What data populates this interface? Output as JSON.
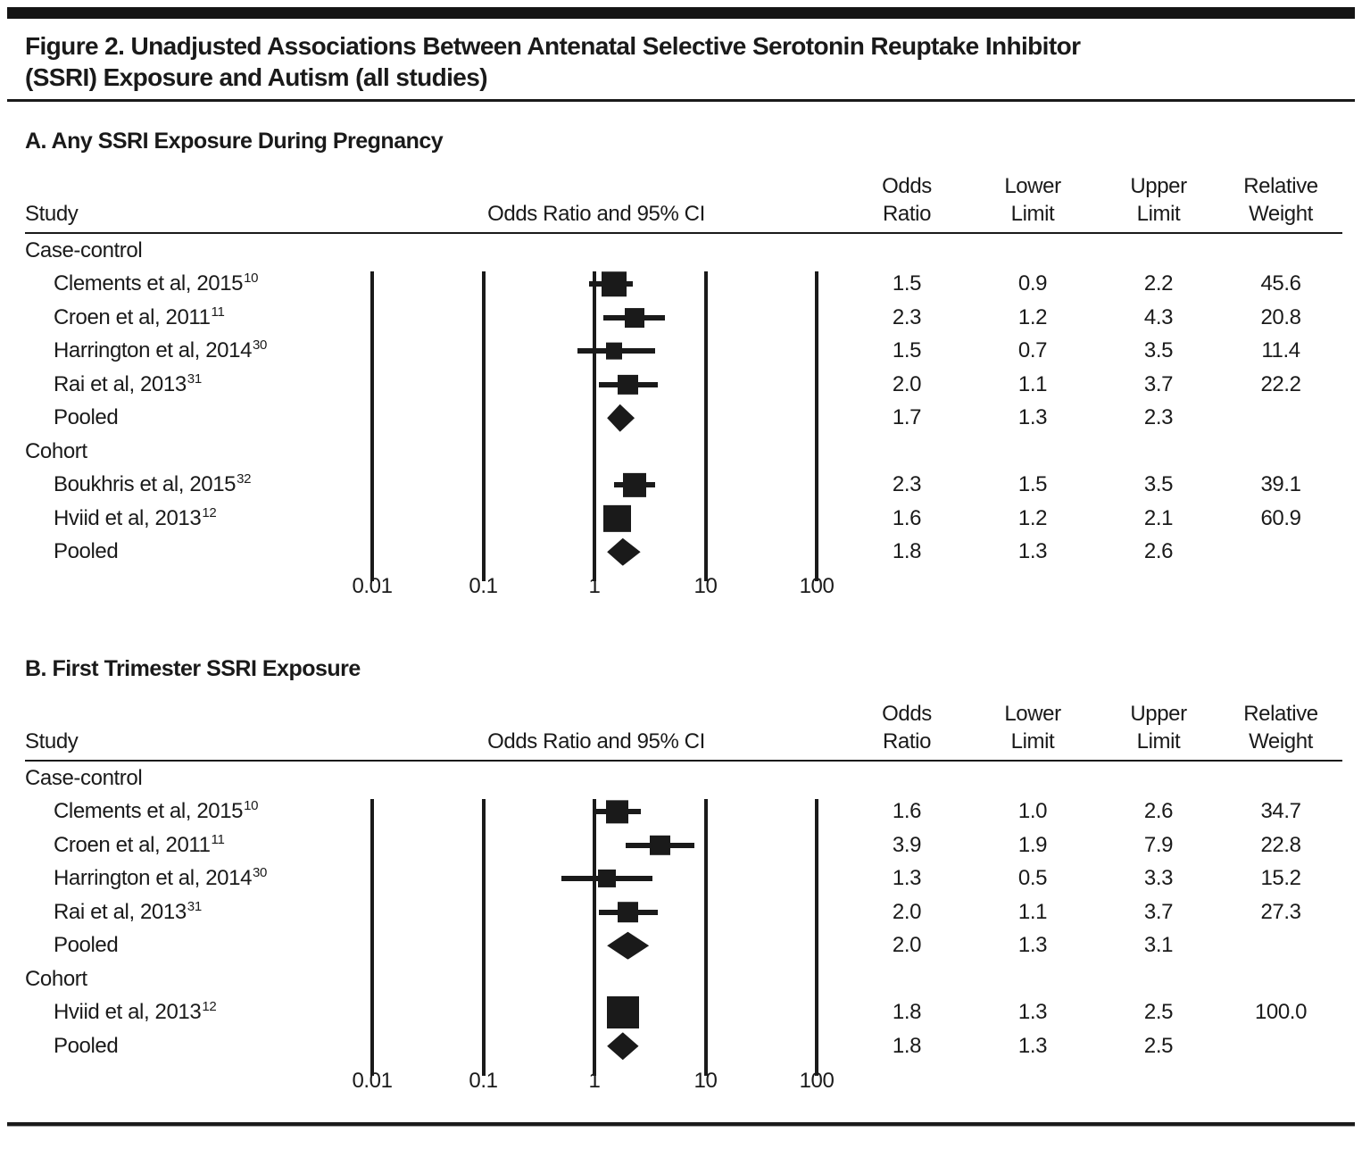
{
  "figure": {
    "title_line1": "Figure 2. Unadjusted Associations Between Antenatal Selective Serotonin Reuptake Inhibitor",
    "title_line2": "(SSRI) Exposure and Autism (all studies)",
    "ink_color": "#1a1a1a"
  },
  "columns": {
    "study": "Study",
    "plot": "Odds Ratio and 95% CI",
    "odds_line1": "Odds",
    "odds_line2": "Ratio",
    "lower_line1": "Lower",
    "lower_line2": "Limit",
    "upper_line1": "Upper",
    "upper_line2": "Limit",
    "weight_line1": "Relative",
    "weight_line2": "Weight"
  },
  "axis_ticks": [
    "0.01",
    "0.1",
    "1",
    "10",
    "100"
  ],
  "chart_data": {
    "type": "forest",
    "x_scale": "log10",
    "x_ticks": [
      0.01,
      0.1,
      1,
      10,
      100
    ],
    "xlim": [
      0.01,
      100
    ],
    "panels": [
      {
        "label": "A. Any SSRI Exposure During Pregnancy",
        "rows": [
          {
            "type": "group",
            "label": "Case-control"
          },
          {
            "type": "study",
            "label": "Clements et al, 2015",
            "ref": "10",
            "or": 1.5,
            "lower": 0.9,
            "upper": 2.2,
            "weight": 45.6
          },
          {
            "type": "study",
            "label": "Croen et al, 2011",
            "ref": "11",
            "or": 2.3,
            "lower": 1.2,
            "upper": 4.3,
            "weight": 20.8
          },
          {
            "type": "study",
            "label": "Harrington et al, 2014",
            "ref": "30",
            "or": 1.5,
            "lower": 0.7,
            "upper": 3.5,
            "weight": 11.4
          },
          {
            "type": "study",
            "label": "Rai et al, 2013",
            "ref": "31",
            "or": 2.0,
            "lower": 1.1,
            "upper": 3.7,
            "weight": 22.2
          },
          {
            "type": "pooled",
            "label": "Pooled",
            "or": 1.7,
            "lower": 1.3,
            "upper": 2.3
          },
          {
            "type": "group",
            "label": "Cohort"
          },
          {
            "type": "study",
            "label": "Boukhris et al, 2015",
            "ref": "32",
            "or": 2.3,
            "lower": 1.5,
            "upper": 3.5,
            "weight": 39.1
          },
          {
            "type": "study",
            "label": "Hviid et al, 2013",
            "ref": "12",
            "or": 1.6,
            "lower": 1.2,
            "upper": 2.1,
            "weight": 60.9
          },
          {
            "type": "pooled",
            "label": "Pooled",
            "or": 1.8,
            "lower": 1.3,
            "upper": 2.6
          }
        ]
      },
      {
        "label": "B. First Trimester SSRI Exposure",
        "rows": [
          {
            "type": "group",
            "label": "Case-control"
          },
          {
            "type": "study",
            "label": "Clements et al, 2015",
            "ref": "10",
            "or": 1.6,
            "lower": 1.0,
            "upper": 2.6,
            "weight": 34.7
          },
          {
            "type": "study",
            "label": "Croen et al, 2011",
            "ref": "11",
            "or": 3.9,
            "lower": 1.9,
            "upper": 7.9,
            "weight": 22.8
          },
          {
            "type": "study",
            "label": "Harrington et al, 2014",
            "ref": "30",
            "or": 1.3,
            "lower": 0.5,
            "upper": 3.3,
            "weight": 15.2
          },
          {
            "type": "study",
            "label": "Rai et al, 2013",
            "ref": "31",
            "or": 2.0,
            "lower": 1.1,
            "upper": 3.7,
            "weight": 27.3
          },
          {
            "type": "pooled",
            "label": "Pooled",
            "or": 2.0,
            "lower": 1.3,
            "upper": 3.1
          },
          {
            "type": "group",
            "label": "Cohort"
          },
          {
            "type": "study",
            "label": "Hviid et al, 2013",
            "ref": "12",
            "or": 1.8,
            "lower": 1.3,
            "upper": 2.5,
            "weight": 100.0
          },
          {
            "type": "pooled",
            "label": "Pooled",
            "or": 1.8,
            "lower": 1.3,
            "upper": 2.5
          }
        ]
      }
    ]
  }
}
